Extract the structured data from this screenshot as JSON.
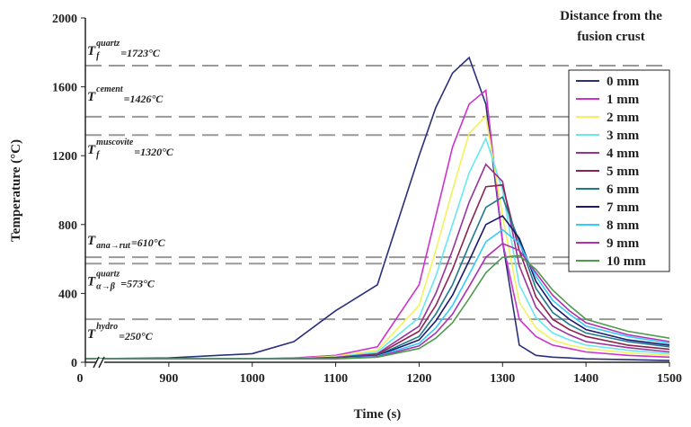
{
  "chart_data": {
    "type": "line",
    "xlabel": "Time (s)",
    "ylabel": "Temperature (°C)",
    "legend_title": [
      "Distance from the",
      "fusion crust"
    ],
    "legend": "upper right",
    "x_break": [
      0,
      800
    ],
    "xlim": [
      0,
      1500
    ],
    "xticks": [
      0,
      900,
      1000,
      1100,
      1200,
      1300,
      1400,
      1500
    ],
    "ylim": [
      0,
      2000
    ],
    "yticks": [
      0,
      400,
      800,
      1200,
      1600,
      2000
    ],
    "x": [
      800,
      900,
      1000,
      1050,
      1100,
      1150,
      1200,
      1220,
      1240,
      1260,
      1280,
      1300,
      1320,
      1340,
      1360,
      1380,
      1400,
      1450,
      1500
    ],
    "series": [
      {
        "name": "0 mm",
        "color": "#2b2f7a",
        "values": [
          20,
          25,
          50,
          120,
          300,
          450,
          1200,
          1480,
          1680,
          1770,
          1500,
          700,
          100,
          40,
          30,
          25,
          20,
          15,
          10
        ]
      },
      {
        "name": "1 mm",
        "color": "#cc33cc",
        "values": [
          20,
          20,
          20,
          25,
          40,
          90,
          450,
          850,
          1250,
          1500,
          1580,
          700,
          250,
          150,
          100,
          80,
          60,
          40,
          30
        ]
      },
      {
        "name": "2 mm",
        "color": "#f2f25c",
        "values": [
          20,
          20,
          20,
          22,
          35,
          70,
          330,
          650,
          1000,
          1330,
          1430,
          850,
          350,
          200,
          130,
          100,
          80,
          55,
          40
        ]
      },
      {
        "name": "3 mm",
        "color": "#66e8f0",
        "values": [
          20,
          20,
          20,
          22,
          30,
          60,
          260,
          500,
          800,
          1100,
          1300,
          1000,
          450,
          260,
          170,
          130,
          100,
          70,
          50
        ]
      },
      {
        "name": "4 mm",
        "color": "#993399",
        "values": [
          20,
          20,
          20,
          22,
          28,
          50,
          210,
          400,
          650,
          930,
          1150,
          1050,
          560,
          320,
          210,
          160,
          120,
          85,
          60
        ]
      },
      {
        "name": "5 mm",
        "color": "#8b2252",
        "values": [
          20,
          20,
          20,
          20,
          25,
          45,
          180,
          330,
          540,
          790,
          1020,
          1030,
          650,
          380,
          250,
          190,
          150,
          100,
          75
        ]
      },
      {
        "name": "6 mm",
        "color": "#1f7a8c",
        "values": [
          20,
          20,
          20,
          20,
          25,
          40,
          150,
          280,
          450,
          680,
          900,
          960,
          700,
          430,
          290,
          220,
          170,
          120,
          90
        ]
      },
      {
        "name": "7 mm",
        "color": "#1a1a6e",
        "values": [
          20,
          20,
          20,
          20,
          24,
          38,
          130,
          240,
          390,
          590,
          800,
          850,
          720,
          470,
          330,
          250,
          190,
          130,
          100
        ]
      },
      {
        "name": "8 mm",
        "color": "#33ccff",
        "values": [
          20,
          20,
          20,
          20,
          22,
          35,
          110,
          200,
          330,
          510,
          700,
          770,
          690,
          500,
          360,
          280,
          210,
          150,
          110
        ]
      },
      {
        "name": "9 mm",
        "color": "#b030b0",
        "values": [
          20,
          20,
          20,
          20,
          22,
          32,
          95,
          170,
          280,
          440,
          610,
          690,
          650,
          520,
          390,
          300,
          230,
          160,
          120
        ]
      },
      {
        "name": "10 mm",
        "color": "#4f9a4f",
        "values": [
          20,
          20,
          20,
          20,
          20,
          30,
          80,
          140,
          230,
          370,
          520,
          610,
          620,
          540,
          420,
          330,
          250,
          180,
          140
        ]
      }
    ],
    "reference_lines": [
      {
        "value": 1723,
        "base": "T",
        "sub": "f",
        "sup": "quartz",
        "text": "=1723°C"
      },
      {
        "value": 1426,
        "base": "T",
        "sup": "cement",
        "text": "=1426°C"
      },
      {
        "value": 1320,
        "base": "T",
        "sub": "f",
        "sup": "muscovite",
        "text": "=1320°C"
      },
      {
        "value": 610,
        "base": "T",
        "sub": "ana→rut",
        "text": "=610°C"
      },
      {
        "value": 573,
        "base": "T",
        "sub": "α→β",
        "sup": "quartz",
        "text": "=573°C"
      },
      {
        "value": 250,
        "base": "T",
        "sup": "hydro",
        "text": "=250°C"
      }
    ]
  }
}
